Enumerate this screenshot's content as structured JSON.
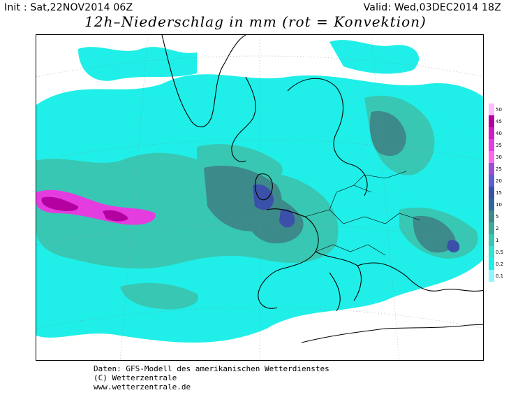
{
  "header": {
    "init": "Init : Sat,22NOV2014 06Z",
    "valid": "Valid: Wed,03DEC2014 18Z",
    "title": "12h–Niederschlag in mm (rot = Konvektion)"
  },
  "legend": {
    "levels": [
      {
        "label": "50",
        "color": "#ffbbff"
      },
      {
        "label": "45",
        "color": "#b400a0"
      },
      {
        "label": "40",
        "color": "#d21ac6"
      },
      {
        "label": "35",
        "color": "#e53ce0"
      },
      {
        "label": "30",
        "color": "#ff66ee"
      },
      {
        "label": "25",
        "color": "#9a4fd0"
      },
      {
        "label": "20",
        "color": "#5d5fd0"
      },
      {
        "label": "15",
        "color": "#3b50a8"
      },
      {
        "label": "10",
        "color": "#2f66a0"
      },
      {
        "label": "5",
        "color": "#3d8a8a"
      },
      {
        "label": "2",
        "color": "#3aa89a"
      },
      {
        "label": "1",
        "color": "#38c7b2"
      },
      {
        "label": "0.5",
        "color": "#2fe4d0"
      },
      {
        "label": "0.2",
        "color": "#1fefe8"
      },
      {
        "label": "0.1",
        "color": "#8ff5ff"
      }
    ]
  },
  "footer": {
    "line1": "Daten: GFS-Modell des amerikanischen Wetterdienstes",
    "line2": "(C) Wetterzentrale",
    "line3": "www.wetterzentrale.de"
  }
}
